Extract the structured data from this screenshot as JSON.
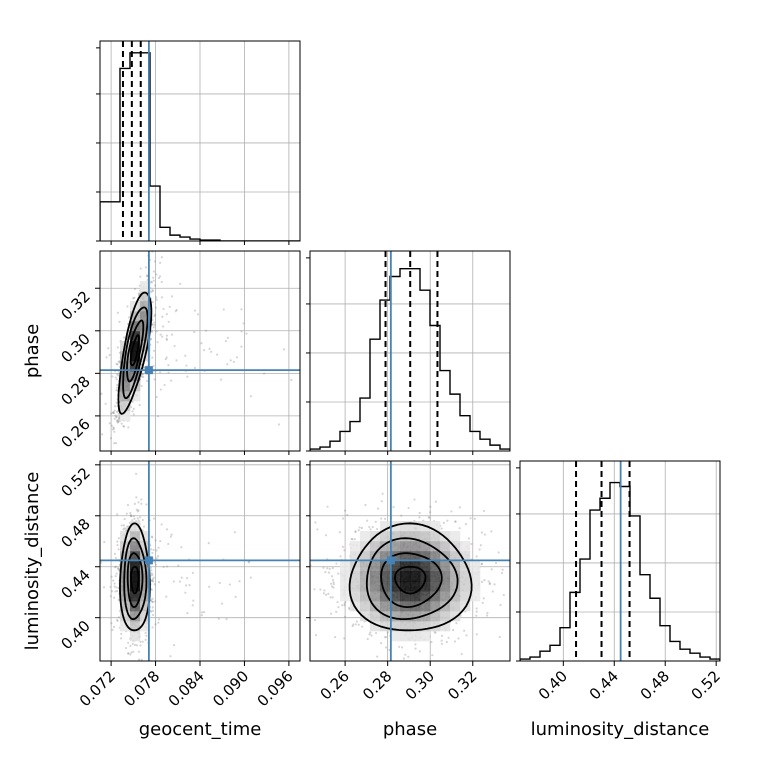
{
  "chart_data": {
    "type": "corner",
    "parameters": [
      "geocent_time",
      "phase",
      "luminosity_distance"
    ],
    "axis_labels": {
      "geocent_time": "geocent_time",
      "phase": "phase",
      "luminosity_distance": "luminosity_distance"
    },
    "ranges": {
      "geocent_time": [
        0.0705,
        0.0975
      ],
      "phase": [
        0.2435,
        0.3375
      ],
      "luminosity_distance": [
        0.366,
        0.523
      ]
    },
    "ticks": {
      "geocent_time": [
        "0.072",
        "0.078",
        "0.084",
        "0.090",
        "0.096"
      ],
      "phase": [
        "0.26",
        "0.28",
        "0.30",
        "0.32"
      ],
      "luminosity_distance": [
        "0.40",
        "0.44",
        "0.48",
        "0.52"
      ]
    },
    "truths": {
      "geocent_time": 0.0771,
      "phase": 0.2815,
      "luminosity_distance": 0.445
    },
    "quantiles": {
      "geocent_time": [
        0.0736,
        0.0748,
        0.076
      ],
      "phase": [
        0.279,
        0.2906,
        0.3034
      ],
      "luminosity_distance": [
        0.41,
        0.43,
        0.452
      ]
    },
    "histograms": {
      "geocent_time": {
        "edges_start": 0.0705,
        "bin_width": 0.00135,
        "counts": [
          0.2,
          0.2,
          0.88,
          0.96,
          0.96,
          0.28,
          0.07,
          0.03,
          0.02,
          0.01,
          0.005,
          0.005,
          0,
          0,
          0,
          0,
          0,
          0,
          0,
          0
        ]
      },
      "phase": {
        "edges_start": 0.2435,
        "bin_width": 0.0047,
        "counts": [
          0.01,
          0.02,
          0.05,
          0.1,
          0.15,
          0.27,
          0.57,
          0.77,
          0.89,
          0.93,
          0.93,
          0.82,
          0.64,
          0.41,
          0.29,
          0.18,
          0.1,
          0.06,
          0.03,
          0.01
        ]
      },
      "luminosity_distance": {
        "edges_start": 0.366,
        "bin_width": 0.00785,
        "counts": [
          0.01,
          0.02,
          0.05,
          0.08,
          0.17,
          0.35,
          0.52,
          0.77,
          0.83,
          0.91,
          0.89,
          0.74,
          0.44,
          0.32,
          0.18,
          0.1,
          0.06,
          0.04,
          0.02,
          0.01
        ]
      }
    },
    "posterior_2d": {
      "phase_vs_geocent_time": {
        "x_param": "geocent_time",
        "y_param": "phase",
        "mean": [
          0.0752,
          0.2906
        ],
        "sd": [
          0.0011,
          0.0142
        ],
        "rho": 0.72,
        "scatter_extent": [
          [
            0.0705,
            0.0975
          ],
          [
            0.2435,
            0.3375
          ]
        ]
      },
      "luminosity_distance_vs_geocent_time": {
        "x_param": "geocent_time",
        "y_param": "luminosity_distance",
        "mean": [
          0.0752,
          0.43
        ],
        "sd": [
          0.001,
          0.021
        ],
        "rho": 0.0,
        "scatter_extent": [
          [
            0.0705,
            0.0975
          ],
          [
            0.366,
            0.523
          ]
        ]
      },
      "luminosity_distance_vs_phase": {
        "x_param": "phase",
        "y_param": "luminosity_distance",
        "mean": [
          0.2906,
          0.43
        ],
        "sd": [
          0.0142,
          0.021
        ],
        "rho": 0.0,
        "scatter_extent": [
          [
            0.2435,
            0.3375
          ],
          [
            0.366,
            0.523
          ]
        ]
      }
    },
    "grid": true,
    "truth_color": "#4682b4",
    "hist_color": "#000000",
    "scatter_color": "#888888"
  }
}
